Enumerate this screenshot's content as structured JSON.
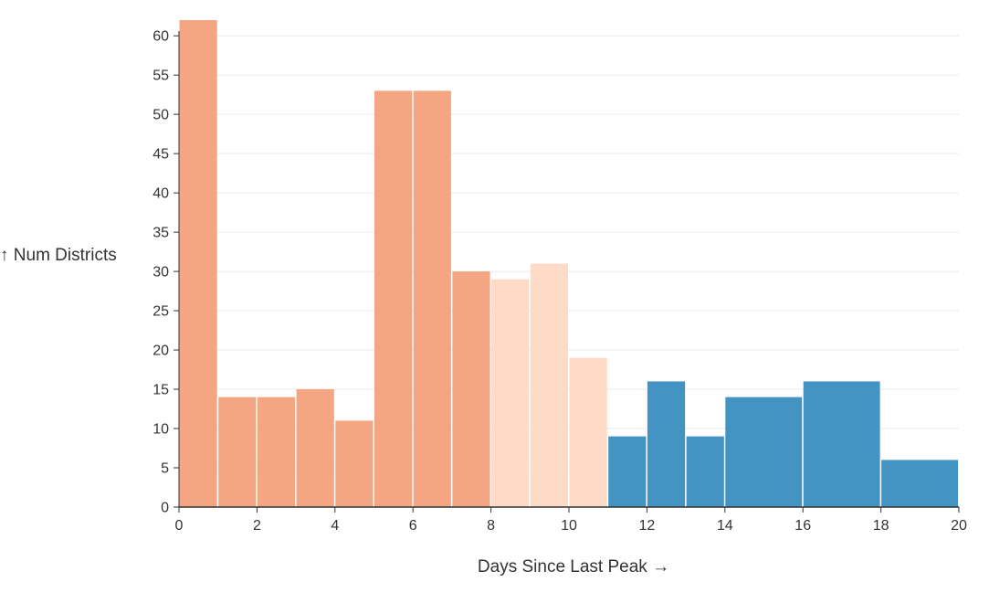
{
  "chart_data": {
    "type": "bar",
    "xlabel": "Days Since Last Peak →",
    "ylabel": "↑ Num Districts",
    "xlim": [
      0,
      20
    ],
    "ylim": [
      0,
      62
    ],
    "x_ticks": [
      "0",
      "2",
      "4",
      "6",
      "8",
      "10",
      "12",
      "14",
      "16",
      "18",
      "20"
    ],
    "y_ticks": [
      "0",
      "5",
      "10",
      "15",
      "20",
      "25",
      "30",
      "35",
      "40",
      "45",
      "50",
      "55",
      "60"
    ],
    "grid": "horizontal",
    "bins": [
      {
        "x0": 0,
        "x1": 1,
        "value": 62,
        "color": "#f4a582"
      },
      {
        "x0": 1,
        "x1": 2,
        "value": 14,
        "color": "#f4a582"
      },
      {
        "x0": 2,
        "x1": 3,
        "value": 14,
        "color": "#f4a582"
      },
      {
        "x0": 3,
        "x1": 4,
        "value": 15,
        "color": "#f4a582"
      },
      {
        "x0": 4,
        "x1": 5,
        "value": 11,
        "color": "#f4a582"
      },
      {
        "x0": 5,
        "x1": 6,
        "value": 53,
        "color": "#f4a582"
      },
      {
        "x0": 6,
        "x1": 7,
        "value": 53,
        "color": "#f4a582"
      },
      {
        "x0": 7,
        "x1": 8,
        "value": 30,
        "color": "#f4a582"
      },
      {
        "x0": 8,
        "x1": 9,
        "value": 29,
        "color": "#fddbc7"
      },
      {
        "x0": 9,
        "x1": 10,
        "value": 31,
        "color": "#fddbc7"
      },
      {
        "x0": 10,
        "x1": 11,
        "value": 19,
        "color": "#fddbc7"
      },
      {
        "x0": 11,
        "x1": 12,
        "value": 9,
        "color": "#4393c3"
      },
      {
        "x0": 12,
        "x1": 13,
        "value": 16,
        "color": "#4393c3"
      },
      {
        "x0": 13,
        "x1": 14,
        "value": 9,
        "color": "#4393c3"
      },
      {
        "x0": 14,
        "x1": 16,
        "value": 14,
        "color": "#4393c3"
      },
      {
        "x0": 16,
        "x1": 18,
        "value": 16,
        "color": "#4393c3"
      },
      {
        "x0": 18,
        "x1": 20,
        "value": 6,
        "color": "#4393c3"
      }
    ],
    "colors": {
      "grid": "#ebebeb",
      "axis": "#333333",
      "bar_stroke": "#ffffff"
    }
  }
}
